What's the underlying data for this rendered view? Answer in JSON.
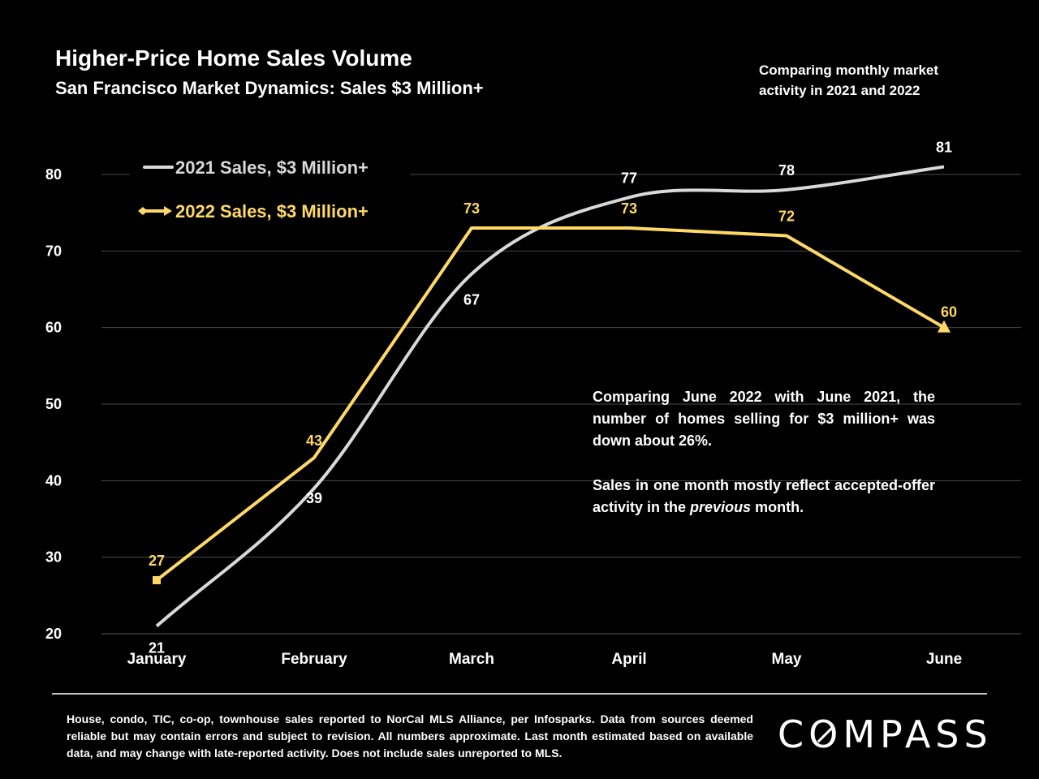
{
  "header": {
    "title": "Higher-Price Home Sales Volume",
    "subtitle": "San Francisco Market Dynamics: Sales $3 Million+",
    "note": "Comparing monthly market activity in 2021 and 2022"
  },
  "callout": {
    "para1": "Comparing June 2022 with June 2021, the number of homes selling for $3 million+ was down about 26%.",
    "para2_before": "Sales in one month mostly reflect accepted-offer activity in the ",
    "para2_em": "previous",
    "para2_after": " month."
  },
  "footer": {
    "footnote": "House, condo, TIC, co-op, townhouse sales reported to NorCal MLS Alliance, per Infosparks. Data from sources deemed reliable but may contain errors and subject to revision. All numbers approximate. Last month estimated based on available data, and may change with late-reported activity. Does not include sales unreported to MLS.",
    "logo_text": "COMPASS"
  },
  "chart_data": {
    "type": "line",
    "categories": [
      "January",
      "February",
      "March",
      "April",
      "May",
      "June"
    ],
    "ylim": [
      20,
      85
    ],
    "yticks": [
      20,
      30,
      40,
      50,
      60,
      70,
      80
    ],
    "grid": true,
    "legend_position": "top-left",
    "series": [
      {
        "name": "2021 Sales, $3 Million+",
        "values": [
          21,
          39,
          67,
          77,
          78,
          81
        ],
        "color": "#d9d9d9",
        "smooth": true
      },
      {
        "name": "2022 Sales, $3 Million+",
        "values": [
          27,
          43,
          73,
          73,
          72,
          60
        ],
        "color": "#ffd966",
        "smooth": false
      }
    ]
  }
}
